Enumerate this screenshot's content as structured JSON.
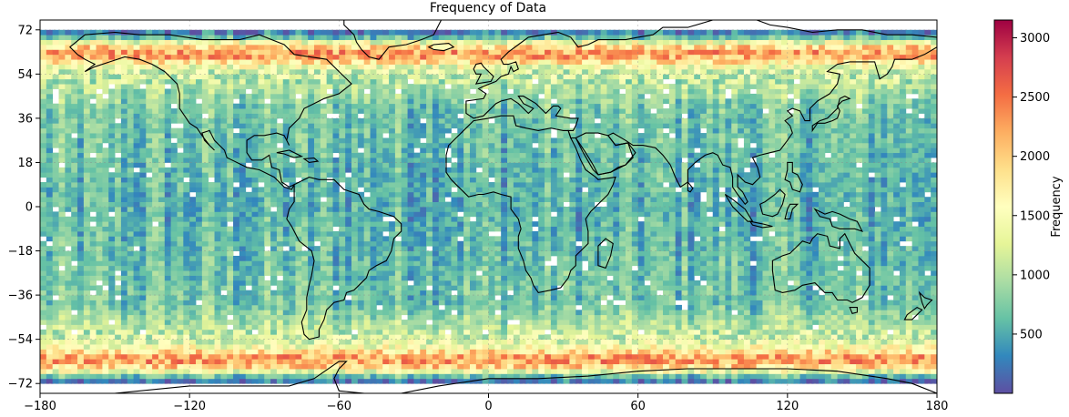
{
  "title": "Frequency of  Data",
  "x_ticks": [
    "−180",
    "−120",
    "−60",
    "0",
    "60",
    "120",
    "180"
  ],
  "y_ticks": [
    "72",
    "54",
    "36",
    "18",
    "0",
    "−18",
    "−36",
    "−54",
    "−72"
  ],
  "colorbar": {
    "label": "Frequency",
    "ticks": [
      "500",
      "1000",
      "1500",
      "2000",
      "2500",
      "3000"
    ],
    "tick_values": [
      500,
      1000,
      1500,
      2000,
      2500,
      3000
    ],
    "min": 0,
    "max": 3150,
    "colormap": [
      "#5e4fa2",
      "#3288bd",
      "#66c2a5",
      "#abdda4",
      "#e6f598",
      "#ffffbf",
      "#fee08b",
      "#fdae61",
      "#f46d43",
      "#d53e4f",
      "#9e0142"
    ]
  },
  "chart_data": {
    "type": "heatmap",
    "title": "Frequency of  Data",
    "xlabel": "",
    "ylabel": "",
    "xlim": [
      -180,
      180
    ],
    "ylim": [
      -76,
      76
    ],
    "x_ticks": [
      -180,
      -120,
      -60,
      0,
      60,
      120,
      180
    ],
    "y_ticks": [
      -72,
      -54,
      -36,
      -18,
      0,
      18,
      36,
      54,
      72
    ],
    "colorbar_label": "Frequency",
    "colorbar_range": [
      0,
      3150
    ],
    "grid": true,
    "bin_width_deg": 2.5,
    "bin_height_deg": 2,
    "latitude_band_profile": [
      {
        "lat": 70,
        "value": 250
      },
      {
        "lat": 66,
        "value": 1800
      },
      {
        "lat": 62,
        "value": 2400
      },
      {
        "lat": 56,
        "value": 1200
      },
      {
        "lat": 40,
        "value": 700
      },
      {
        "lat": 0,
        "value": 550
      },
      {
        "lat": -40,
        "value": 700
      },
      {
        "lat": -56,
        "value": 1300
      },
      {
        "lat": -62,
        "value": 2400
      },
      {
        "lat": -66,
        "value": 1800
      },
      {
        "lat": -70,
        "value": 250
      }
    ]
  }
}
